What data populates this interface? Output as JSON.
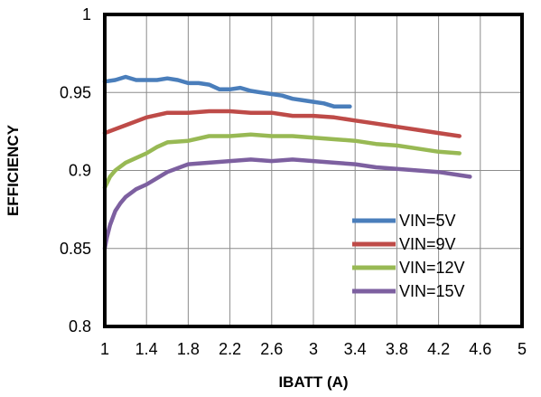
{
  "chart_data": {
    "type": "line",
    "title": "",
    "xlabel": "IBATT  (A)",
    "ylabel": "EFFICIENCY",
    "xlim": [
      1,
      5
    ],
    "ylim": [
      0.8,
      1
    ],
    "xticks": [
      1,
      1.4,
      1.8,
      2.2,
      2.6,
      3,
      3.4,
      3.8,
      4.2,
      4.6,
      5
    ],
    "xtick_labels": [
      "1",
      "1.4",
      "1.8",
      "2.2",
      "2.6",
      "3",
      "3.4",
      "3.8",
      "4.2",
      "4.6",
      "5"
    ],
    "yticks": [
      0.8,
      0.85,
      0.9,
      0.95,
      1
    ],
    "ytick_labels": [
      "0.8",
      "0.85",
      "0.9",
      "0.95",
      "1"
    ],
    "grid": true,
    "legend_position": "lower-right",
    "series": [
      {
        "name": "VIN=5V",
        "color": "#4A7EBB",
        "x": [
          1.0,
          1.1,
          1.2,
          1.3,
          1.4,
          1.5,
          1.6,
          1.7,
          1.8,
          1.9,
          2.0,
          2.1,
          2.2,
          2.3,
          2.4,
          2.5,
          2.6,
          2.7,
          2.8,
          2.9,
          3.0,
          3.1,
          3.2,
          3.3,
          3.35
        ],
        "values": [
          0.957,
          0.958,
          0.96,
          0.958,
          0.958,
          0.958,
          0.959,
          0.958,
          0.956,
          0.956,
          0.955,
          0.952,
          0.952,
          0.953,
          0.951,
          0.95,
          0.949,
          0.948,
          0.946,
          0.945,
          0.944,
          0.943,
          0.941,
          0.941,
          0.941
        ]
      },
      {
        "name": "VIN=9V",
        "color": "#BE4B48",
        "x": [
          1.0,
          1.2,
          1.4,
          1.6,
          1.8,
          2.0,
          2.2,
          2.4,
          2.6,
          2.8,
          3.0,
          3.2,
          3.4,
          3.6,
          3.8,
          4.0,
          4.2,
          4.4
        ],
        "values": [
          0.924,
          0.929,
          0.934,
          0.937,
          0.937,
          0.938,
          0.938,
          0.937,
          0.937,
          0.935,
          0.935,
          0.934,
          0.932,
          0.93,
          0.928,
          0.926,
          0.924,
          0.922
        ]
      },
      {
        "name": "VIN=12V",
        "color": "#98B954",
        "x": [
          1.0,
          1.05,
          1.1,
          1.2,
          1.3,
          1.4,
          1.5,
          1.6,
          1.8,
          2.0,
          2.2,
          2.4,
          2.6,
          2.8,
          3.0,
          3.2,
          3.4,
          3.6,
          3.8,
          4.0,
          4.2,
          4.4
        ],
        "values": [
          0.889,
          0.896,
          0.9,
          0.905,
          0.908,
          0.911,
          0.915,
          0.918,
          0.919,
          0.922,
          0.922,
          0.923,
          0.922,
          0.922,
          0.921,
          0.92,
          0.919,
          0.917,
          0.916,
          0.914,
          0.912,
          0.911
        ]
      },
      {
        "name": "VIN=15V",
        "color": "#7D60A0",
        "x": [
          1.0,
          1.02,
          1.05,
          1.1,
          1.15,
          1.2,
          1.3,
          1.4,
          1.5,
          1.6,
          1.8,
          2.0,
          2.2,
          2.4,
          2.6,
          2.8,
          3.0,
          3.2,
          3.4,
          3.6,
          3.8,
          4.0,
          4.2,
          4.5
        ],
        "values": [
          0.85,
          0.857,
          0.865,
          0.874,
          0.879,
          0.883,
          0.888,
          0.891,
          0.895,
          0.899,
          0.904,
          0.905,
          0.906,
          0.907,
          0.906,
          0.907,
          0.906,
          0.905,
          0.904,
          0.902,
          0.901,
          0.9,
          0.899,
          0.896
        ]
      }
    ]
  }
}
